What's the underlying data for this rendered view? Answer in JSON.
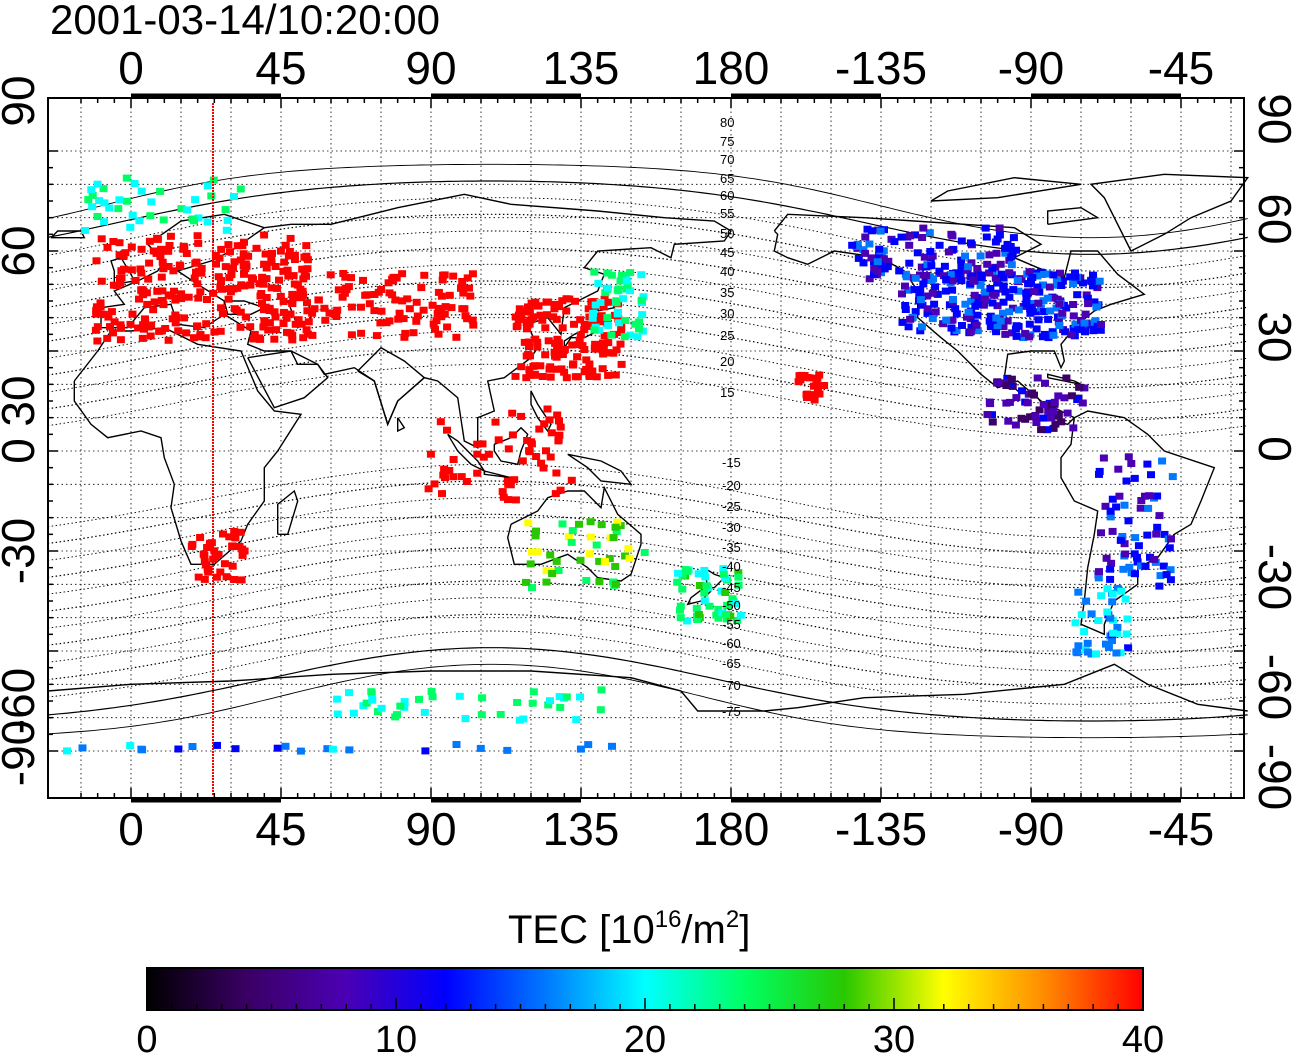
{
  "title": "2001-03-14/10:20:00",
  "lon_ticks": [
    "0",
    "45",
    "90",
    "135",
    "180",
    "-135",
    "-90",
    "-45"
  ],
  "lat_ticks": [
    "90",
    "60",
    "30",
    "0",
    "-30",
    "-60",
    "-90"
  ],
  "contour_labels_north": [
    "80",
    "75",
    "70",
    "65",
    "60",
    "55",
    "50",
    "45",
    "40",
    "35",
    "30",
    "25",
    "20",
    "15"
  ],
  "contour_labels_south": [
    "-15",
    "-20",
    "-25",
    "-30",
    "-35",
    "-40",
    "-45",
    "-50",
    "-55",
    "-60",
    "-65",
    "-70",
    "-75"
  ],
  "colorbar": {
    "title_prefix": "TEC  [10",
    "title_sup1": "16",
    "title_mid": "/m",
    "title_sup2": "2",
    "title_suffix": "]",
    "ticks": [
      "0",
      "10",
      "20",
      "30",
      "40"
    ],
    "range": [
      0,
      40
    ],
    "colors": [
      "#000000",
      "#3a0064",
      "#4b00b4",
      "#0000ff",
      "#0078ff",
      "#00ffff",
      "#00ff64",
      "#28c800",
      "#ffff00",
      "#ff8c00",
      "#ff0000"
    ]
  },
  "chart_data": {
    "type": "map",
    "projection": "equirectangular, longitude wraps 0 → 180 → -45",
    "x_range_deg": [
      -25,
      335
    ],
    "y_range_deg": [
      -90,
      90
    ],
    "marker_meridian_lon": 25,
    "tec_clusters": [
      {
        "region": "Europe",
        "lon": 20,
        "lat": 50,
        "tec": 40
      },
      {
        "region": "Arctic Europe",
        "lon": 10,
        "lat": 75,
        "tec": 22
      },
      {
        "region": "Central Asia",
        "lon": 75,
        "lat": 45,
        "tec": 40
      },
      {
        "region": "Japan / China",
        "lon": 130,
        "lat": 35,
        "tec": 40
      },
      {
        "region": "NE Asia",
        "lon": 145,
        "lat": 45,
        "tec": 22
      },
      {
        "region": "Indonesia",
        "lon": 110,
        "lat": 0,
        "tec": 40
      },
      {
        "region": "Australia",
        "lon": 135,
        "lat": -30,
        "tec": 28
      },
      {
        "region": "New Zealand",
        "lon": 172,
        "lat": -42,
        "tec": 23
      },
      {
        "region": "Hawaii",
        "lon": -157,
        "lat": 20,
        "tec": 40
      },
      {
        "region": "North America",
        "lon": -100,
        "lat": 45,
        "tec": 12
      },
      {
        "region": "Canada",
        "lon": -120,
        "lat": 60,
        "tec": 11
      },
      {
        "region": "Central America",
        "lon": -90,
        "lat": 15,
        "tec": 7
      },
      {
        "region": "South America",
        "lon": -60,
        "lat": -20,
        "tec": 12
      },
      {
        "region": "Patagonia",
        "lon": -70,
        "lat": -50,
        "tec": 17
      },
      {
        "region": "Southern Africa",
        "lon": 25,
        "lat": -30,
        "tec": 40
      },
      {
        "region": "Antarctica coast",
        "lon": 100,
        "lat": -75,
        "tec": 22
      },
      {
        "region": "Antarctic edge",
        "lon": 0,
        "lat": -88,
        "tec": 16
      }
    ]
  }
}
